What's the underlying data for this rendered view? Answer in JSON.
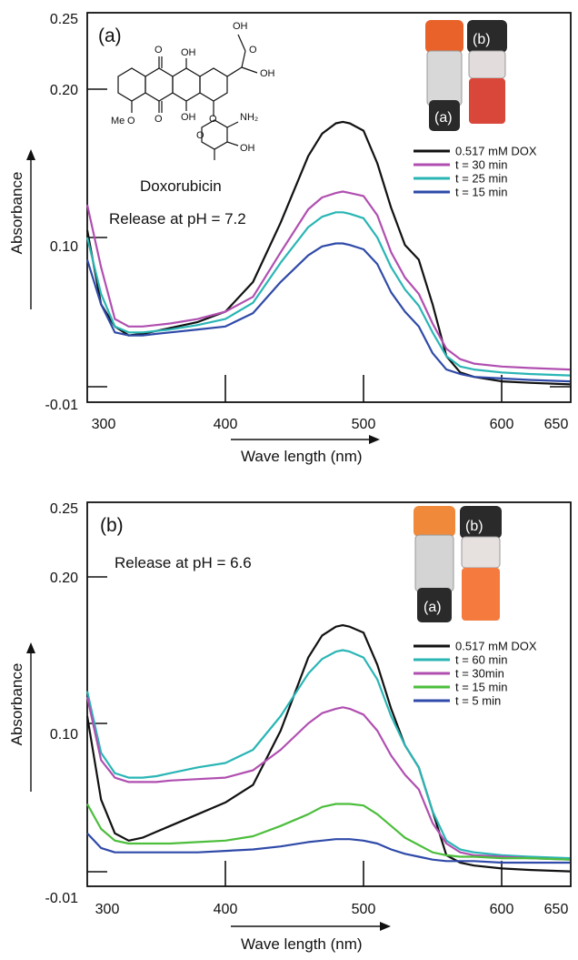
{
  "chart_data": [
    {
      "type": "line",
      "panel_label": "(a)",
      "annotation": "Release at pH = 7.2",
      "molecule_label": "Doxorubicin",
      "xlabel": "Wave length (nm)",
      "ylabel": "Absorbance",
      "xlim": [
        300,
        650
      ],
      "ylim": [
        -0.01,
        0.25
      ],
      "x_ticks": [
        "300",
        "400",
        "500",
        "600",
        "650"
      ],
      "y_ticks": [
        "0.25",
        "0.20",
        "0.10",
        "-0.01"
      ],
      "legend_position": "top-right",
      "photo_labels": [
        "(a)",
        "(b)"
      ],
      "x": [
        300,
        310,
        320,
        330,
        340,
        350,
        360,
        380,
        400,
        420,
        440,
        460,
        470,
        480,
        485,
        490,
        500,
        510,
        520,
        530,
        540,
        550,
        560,
        570,
        580,
        600,
        620,
        650
      ],
      "series": [
        {
          "name": "0.517 mM DOX",
          "color": "#111111",
          "values": [
            0.105,
            0.055,
            0.04,
            0.034,
            0.035,
            0.037,
            0.039,
            0.043,
            0.05,
            0.07,
            0.11,
            0.155,
            0.17,
            0.177,
            0.178,
            0.177,
            0.172,
            0.15,
            0.12,
            0.095,
            0.085,
            0.055,
            0.02,
            0.009,
            0.006,
            0.003,
            0.002,
            0.001
          ]
        },
        {
          "name": "t = 30 min",
          "color": "#b04fb0",
          "values": [
            0.122,
            0.08,
            0.045,
            0.04,
            0.04,
            0.041,
            0.042,
            0.045,
            0.05,
            0.06,
            0.09,
            0.119,
            0.127,
            0.13,
            0.131,
            0.13,
            0.128,
            0.115,
            0.09,
            0.073,
            0.062,
            0.042,
            0.025,
            0.018,
            0.015,
            0.013,
            0.012,
            0.011
          ]
        },
        {
          "name": "t = 25 min",
          "color": "#2ab5b5",
          "values": [
            0.1,
            0.062,
            0.04,
            0.036,
            0.036,
            0.037,
            0.038,
            0.041,
            0.045,
            0.056,
            0.083,
            0.107,
            0.114,
            0.117,
            0.117,
            0.116,
            0.113,
            0.1,
            0.08,
            0.065,
            0.054,
            0.036,
            0.02,
            0.013,
            0.011,
            0.009,
            0.008,
            0.007
          ]
        },
        {
          "name": "t = 15 min",
          "color": "#2f4aa8",
          "values": [
            0.085,
            0.055,
            0.036,
            0.034,
            0.034,
            0.035,
            0.036,
            0.038,
            0.04,
            0.049,
            0.07,
            0.088,
            0.094,
            0.096,
            0.096,
            0.095,
            0.092,
            0.082,
            0.063,
            0.05,
            0.04,
            0.022,
            0.011,
            0.008,
            0.006,
            0.005,
            0.004,
            0.003
          ]
        }
      ]
    },
    {
      "type": "line",
      "panel_label": "(b)",
      "annotation": "Release at pH = 6.6",
      "xlabel": "Wave length (nm)",
      "ylabel": "Absorbance",
      "xlim": [
        300,
        650
      ],
      "ylim": [
        -0.01,
        0.25
      ],
      "x_ticks": [
        "300",
        "400",
        "500",
        "600",
        "650"
      ],
      "y_ticks": [
        "0.25",
        "0.20",
        "0.10",
        "-0.01"
      ],
      "legend_position": "top-right",
      "photo_labels": [
        "(a)",
        "(b)"
      ],
      "x": [
        300,
        310,
        320,
        330,
        340,
        350,
        360,
        380,
        400,
        420,
        440,
        460,
        470,
        480,
        485,
        490,
        500,
        510,
        520,
        530,
        540,
        550,
        560,
        570,
        580,
        600,
        620,
        650
      ],
      "series": [
        {
          "name": "0.517 mM DOX",
          "color": "#111111",
          "values": [
            0.105,
            0.048,
            0.025,
            0.02,
            0.022,
            0.026,
            0.03,
            0.038,
            0.046,
            0.058,
            0.095,
            0.145,
            0.16,
            0.166,
            0.167,
            0.166,
            0.162,
            0.14,
            0.11,
            0.085,
            0.07,
            0.04,
            0.01,
            0.005,
            0.003,
            0.001,
            0.0,
            -0.001
          ]
        },
        {
          "name": "t = 60 min",
          "color": "#2ab5b5",
          "values": [
            0.122,
            0.08,
            0.066,
            0.063,
            0.063,
            0.064,
            0.066,
            0.07,
            0.073,
            0.082,
            0.105,
            0.134,
            0.144,
            0.149,
            0.15,
            0.149,
            0.145,
            0.13,
            0.105,
            0.085,
            0.07,
            0.04,
            0.02,
            0.014,
            0.012,
            0.01,
            0.009,
            0.008
          ]
        },
        {
          "name": "t = 30min",
          "color": "#b04fb0",
          "values": [
            0.118,
            0.075,
            0.063,
            0.06,
            0.06,
            0.06,
            0.061,
            0.062,
            0.063,
            0.068,
            0.082,
            0.1,
            0.107,
            0.11,
            0.111,
            0.11,
            0.106,
            0.095,
            0.078,
            0.065,
            0.055,
            0.032,
            0.018,
            0.012,
            0.01,
            0.009,
            0.008,
            0.007
          ]
        },
        {
          "name": "t = 15 min",
          "color": "#4cbe3c",
          "values": [
            0.045,
            0.028,
            0.02,
            0.018,
            0.018,
            0.018,
            0.018,
            0.019,
            0.02,
            0.023,
            0.03,
            0.038,
            0.043,
            0.045,
            0.045,
            0.045,
            0.044,
            0.038,
            0.03,
            0.022,
            0.017,
            0.012,
            0.01,
            0.009,
            0.009,
            0.008,
            0.008,
            0.007
          ]
        },
        {
          "name": "t =  5 min",
          "color": "#2f4aa8",
          "values": [
            0.025,
            0.015,
            0.012,
            0.012,
            0.012,
            0.012,
            0.012,
            0.012,
            0.013,
            0.014,
            0.016,
            0.019,
            0.02,
            0.021,
            0.021,
            0.021,
            0.02,
            0.018,
            0.014,
            0.011,
            0.009,
            0.007,
            0.006,
            0.006,
            0.006,
            0.005,
            0.005,
            0.005
          ]
        }
      ]
    }
  ]
}
